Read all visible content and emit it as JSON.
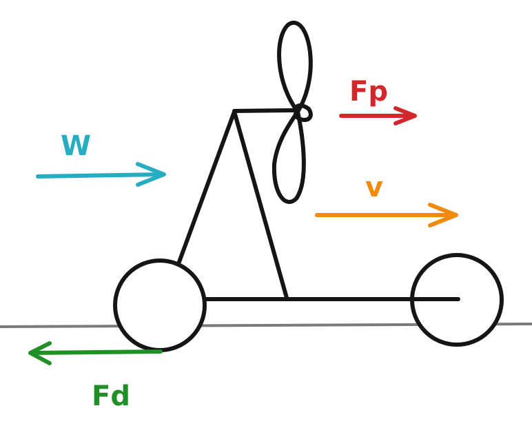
{
  "labels": {
    "wind": "W",
    "propeller_force": "Fp",
    "velocity": "v",
    "drag_force": "Fd"
  },
  "colors": {
    "wind": "#26adc2",
    "propeller_force": "#d3272b",
    "velocity": "#f28a0e",
    "drag_force": "#1f8f26",
    "structure": "#151515",
    "ground": "#7a7a7a"
  }
}
